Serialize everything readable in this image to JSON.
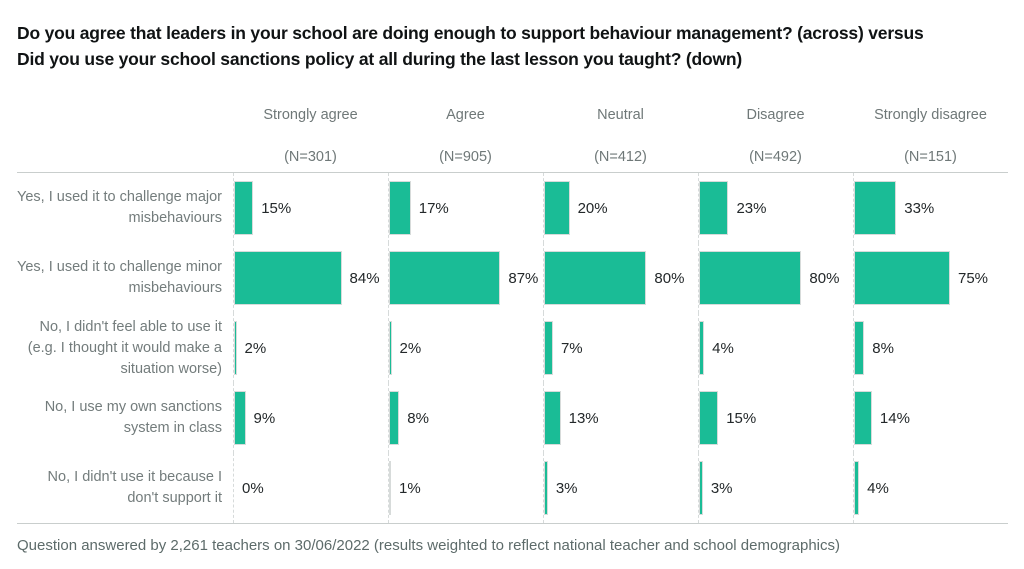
{
  "title": {
    "line1": "Do you agree that leaders in your school are doing enough to support behaviour management? (across) versus",
    "line2": "Did you use your school sanctions policy at all during the last lesson you taught? (down)"
  },
  "footer": "Question answered by 2,261 teachers on 30/06/2022 (results weighted to reflect national teacher and school demographics)",
  "colors": {
    "bar": "#1abc96",
    "bar_border": "#d7dbda",
    "grid_line": "#c9cecd",
    "column_divider": "#d6dada",
    "title_text": "#101314",
    "label_text": "#737c7c",
    "value_text": "#23282a",
    "footer_text": "#5d6b6a"
  },
  "chart_data": {
    "type": "bar",
    "layout": "small-multiples-horizontal-bars",
    "title": "Do you agree that leaders in your school are doing enough to support behaviour management? (across) versus Did you use your school sanctions policy at all during the last lesson you taught? (down)",
    "categories": [
      "Yes, I used it to challenge major misbehaviours",
      "Yes, I used it to challenge minor misbehaviours",
      "No, I didn't feel able to use it (e.g. I thought it would make a situation worse)",
      "No, I use my own sanctions system in class",
      "No, I didn't use it because I don't support it"
    ],
    "series": [
      {
        "name": "Strongly agree",
        "n_label": "(N=301)",
        "n": 301,
        "values": [
          15,
          84,
          2,
          9,
          0
        ]
      },
      {
        "name": "Agree",
        "n_label": "(N=905)",
        "n": 905,
        "values": [
          17,
          87,
          2,
          8,
          1
        ]
      },
      {
        "name": "Neutral",
        "n_label": "(N=412)",
        "n": 412,
        "values": [
          20,
          80,
          7,
          13,
          3
        ]
      },
      {
        "name": "Disagree",
        "n_label": "(N=492)",
        "n": 492,
        "values": [
          23,
          80,
          4,
          15,
          3
        ]
      },
      {
        "name": "Strongly disagree",
        "n_label": "(N=151)",
        "n": 151,
        "values": [
          33,
          75,
          8,
          14,
          4
        ]
      }
    ],
    "value_suffix": "%",
    "xlim": [
      0,
      100
    ],
    "value_labels": true,
    "grid": "column-dividers-dashed",
    "legend_position": "column-headers"
  }
}
